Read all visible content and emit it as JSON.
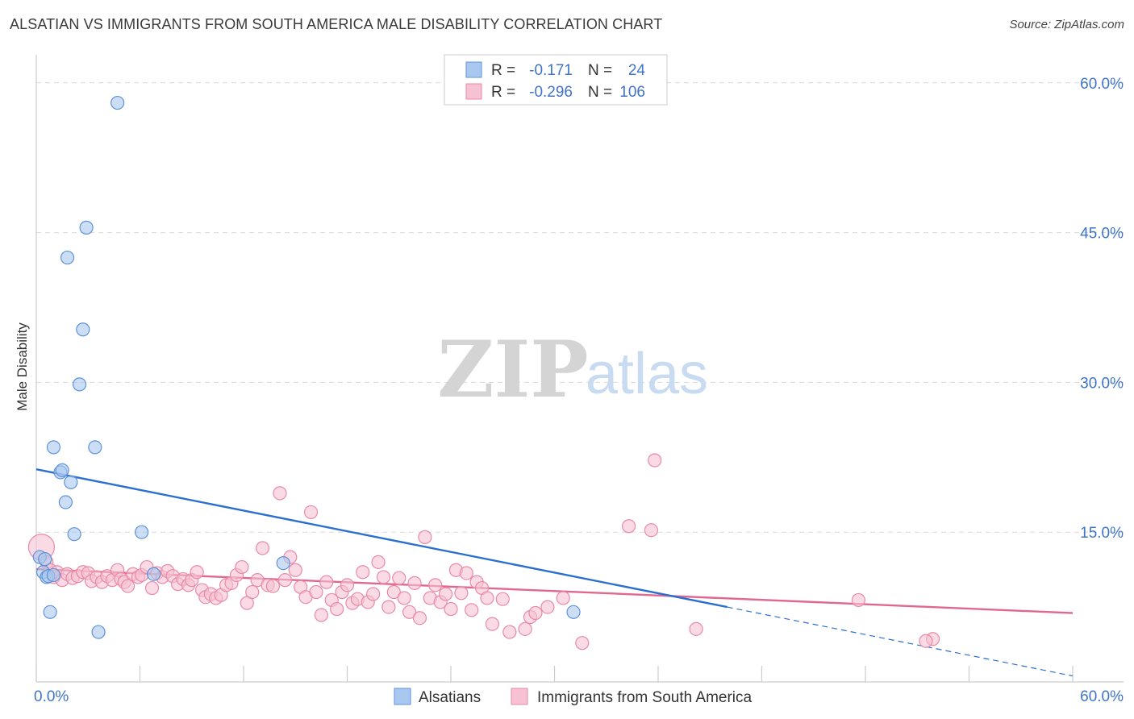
{
  "title": "ALSATIAN VS IMMIGRANTS FROM SOUTH AMERICA MALE DISABILITY CORRELATION CHART",
  "source": "Source: ZipAtlas.com",
  "watermark": {
    "zip": "ZIP",
    "atlas": "atlas"
  },
  "legend_top": [
    {
      "r_label": "R =",
      "r_value": "-0.171",
      "n_label": "N =",
      "n_value": "24"
    },
    {
      "r_label": "R =",
      "r_value": "-0.296",
      "n_label": "N =",
      "n_value": "106"
    }
  ],
  "colors": {
    "blue_fill": "#a9c8ef",
    "blue_stroke": "#5f93d8",
    "blue_line": "#2b6fd0",
    "pink_fill": "#f6c1d2",
    "pink_stroke": "#e88aa8",
    "pink_line": "#e2678e",
    "axis_text": "#3f74c9",
    "grid": "#d9d9d9"
  },
  "chart_data": {
    "type": "scatter",
    "ylabel": "Male Disability",
    "xlim": [
      0,
      60
    ],
    "ylim": [
      0,
      62
    ],
    "x_tick_labels": [
      "0.0%",
      "60.0%"
    ],
    "y_ticks": [
      15,
      30,
      45,
      60
    ],
    "y_tick_labels": [
      "15.0%",
      "30.0%",
      "45.0%",
      "60.0%"
    ],
    "series": [
      {
        "name": "Alsatians",
        "color": "blue",
        "points": [
          [
            0.2,
            12.5
          ],
          [
            0.4,
            11.0
          ],
          [
            0.5,
            12.3
          ],
          [
            0.6,
            10.5
          ],
          [
            0.7,
            10.6
          ],
          [
            0.8,
            7.0
          ],
          [
            1.0,
            23.5
          ],
          [
            1.4,
            21.0
          ],
          [
            1.5,
            21.2
          ],
          [
            1.7,
            18.0
          ],
          [
            1.8,
            42.5
          ],
          [
            2.0,
            20.0
          ],
          [
            2.2,
            14.8
          ],
          [
            2.5,
            29.8
          ],
          [
            2.7,
            35.3
          ],
          [
            2.9,
            45.5
          ],
          [
            3.4,
            23.5
          ],
          [
            3.6,
            5.0
          ],
          [
            4.7,
            58.0
          ],
          [
            6.1,
            15.0
          ],
          [
            6.8,
            10.8
          ],
          [
            14.3,
            11.9
          ],
          [
            31.1,
            7.0
          ],
          [
            1.0,
            10.7
          ]
        ],
        "trend_solid": [
          [
            0,
            21.3
          ],
          [
            40,
            7.5
          ]
        ],
        "trend_dashed": [
          [
            40,
            7.5
          ],
          [
            60,
            0.6
          ]
        ]
      },
      {
        "name": "Immigrants from South America",
        "color": "pink",
        "points": [
          [
            0.3,
            13.5
          ],
          [
            0.6,
            12.0
          ],
          [
            0.8,
            11.2
          ],
          [
            1.0,
            10.5
          ],
          [
            1.2,
            11.0
          ],
          [
            1.5,
            10.2
          ],
          [
            1.8,
            10.8
          ],
          [
            2.1,
            10.4
          ],
          [
            2.4,
            10.6
          ],
          [
            2.7,
            11.0
          ],
          [
            3.0,
            10.9
          ],
          [
            3.2,
            10.1
          ],
          [
            3.5,
            10.5
          ],
          [
            3.8,
            10.0
          ],
          [
            4.1,
            10.6
          ],
          [
            4.4,
            10.2
          ],
          [
            4.7,
            11.2
          ],
          [
            4.9,
            10.3
          ],
          [
            5.1,
            10.0
          ],
          [
            5.3,
            9.6
          ],
          [
            5.6,
            10.8
          ],
          [
            5.9,
            10.5
          ],
          [
            6.1,
            10.7
          ],
          [
            6.4,
            11.5
          ],
          [
            6.7,
            9.4
          ],
          [
            7.0,
            10.9
          ],
          [
            7.3,
            10.5
          ],
          [
            7.6,
            11.1
          ],
          [
            7.9,
            10.6
          ],
          [
            8.2,
            9.8
          ],
          [
            8.5,
            10.3
          ],
          [
            8.8,
            9.7
          ],
          [
            9.0,
            10.2
          ],
          [
            9.3,
            11.0
          ],
          [
            9.6,
            9.2
          ],
          [
            9.8,
            8.5
          ],
          [
            10.1,
            8.8
          ],
          [
            10.4,
            8.4
          ],
          [
            10.7,
            8.7
          ],
          [
            11.0,
            9.7
          ],
          [
            11.3,
            9.9
          ],
          [
            11.6,
            10.7
          ],
          [
            11.9,
            11.5
          ],
          [
            12.2,
            7.9
          ],
          [
            12.5,
            9.0
          ],
          [
            12.8,
            10.2
          ],
          [
            13.1,
            13.4
          ],
          [
            13.4,
            9.7
          ],
          [
            13.7,
            9.6
          ],
          [
            14.1,
            18.9
          ],
          [
            14.4,
            10.2
          ],
          [
            14.7,
            12.5
          ],
          [
            15.0,
            11.2
          ],
          [
            15.3,
            9.5
          ],
          [
            15.6,
            8.5
          ],
          [
            15.9,
            17.0
          ],
          [
            16.2,
            9.0
          ],
          [
            16.5,
            6.7
          ],
          [
            16.8,
            10.0
          ],
          [
            17.1,
            8.2
          ],
          [
            17.4,
            7.3
          ],
          [
            17.7,
            9.0
          ],
          [
            18.0,
            9.7
          ],
          [
            18.3,
            7.9
          ],
          [
            18.6,
            8.3
          ],
          [
            18.9,
            11.0
          ],
          [
            19.2,
            8.0
          ],
          [
            19.5,
            8.8
          ],
          [
            19.8,
            12.0
          ],
          [
            20.1,
            10.5
          ],
          [
            20.4,
            7.5
          ],
          [
            20.7,
            9.0
          ],
          [
            21.0,
            10.4
          ],
          [
            21.3,
            8.4
          ],
          [
            21.6,
            7.0
          ],
          [
            21.9,
            9.9
          ],
          [
            22.2,
            6.4
          ],
          [
            22.5,
            14.5
          ],
          [
            22.8,
            8.4
          ],
          [
            23.1,
            9.7
          ],
          [
            23.4,
            8.0
          ],
          [
            23.7,
            8.8
          ],
          [
            24.0,
            7.3
          ],
          [
            24.3,
            11.2
          ],
          [
            24.6,
            8.9
          ],
          [
            24.9,
            10.9
          ],
          [
            25.2,
            7.2
          ],
          [
            25.5,
            10.0
          ],
          [
            25.8,
            9.4
          ],
          [
            26.1,
            8.4
          ],
          [
            26.4,
            5.8
          ],
          [
            27.0,
            8.3
          ],
          [
            27.4,
            5.0
          ],
          [
            28.3,
            5.3
          ],
          [
            28.6,
            6.5
          ],
          [
            28.9,
            6.9
          ],
          [
            29.6,
            7.5
          ],
          [
            30.5,
            8.4
          ],
          [
            31.6,
            3.9
          ],
          [
            34.3,
            15.6
          ],
          [
            35.6,
            15.2
          ],
          [
            35.8,
            22.2
          ],
          [
            38.2,
            5.3
          ],
          [
            47.6,
            8.2
          ],
          [
            51.9,
            4.3
          ],
          [
            51.5,
            4.1
          ]
        ],
        "trend_solid": [
          [
            0,
            11.3
          ],
          [
            60,
            6.9
          ]
        ]
      }
    ],
    "legend": [
      "Alsatians",
      "Immigrants from South America"
    ]
  }
}
